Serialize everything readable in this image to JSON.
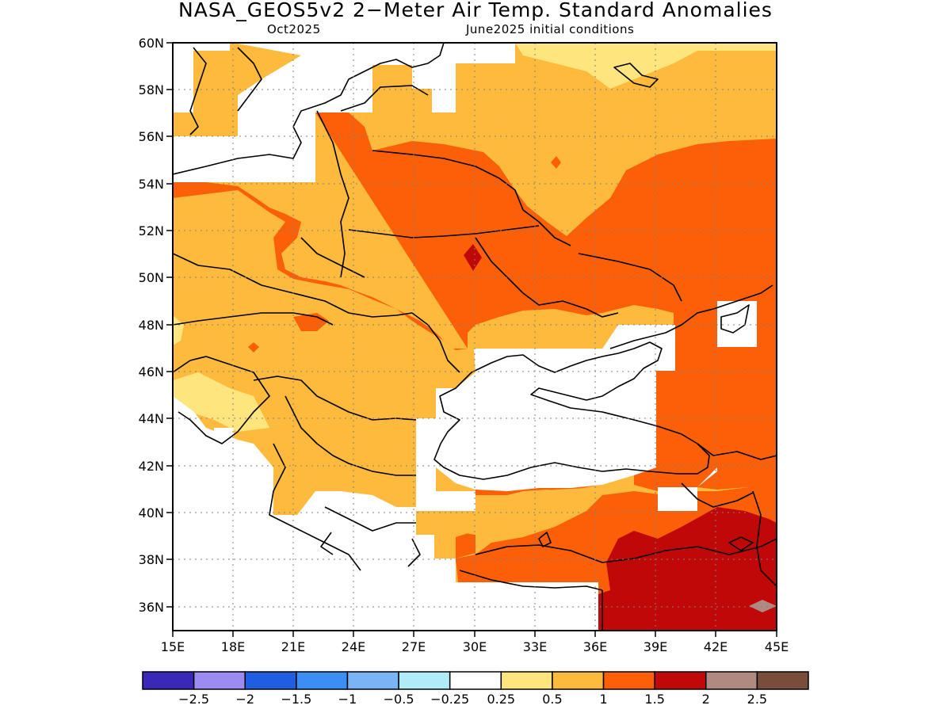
{
  "title": "NASA_GEOS5v2 2−Meter Air Temp. Standard Anomalies",
  "subtitle_left": "Oct2025",
  "subtitle_right": "June2025 initial conditions",
  "lat_ticks": [
    "60N",
    "58N",
    "56N",
    "54N",
    "52N",
    "50N",
    "48N",
    "46N",
    "44N",
    "42N",
    "40N",
    "38N",
    "36N"
  ],
  "lon_ticks": [
    "15E",
    "18E",
    "21E",
    "24E",
    "27E",
    "30E",
    "33E",
    "36E",
    "39E",
    "42E",
    "45E"
  ],
  "colorbar": {
    "colors": [
      "#3a28b8",
      "#9c8cf2",
      "#1f5ee0",
      "#3c8ef4",
      "#78b4f6",
      "#b0ecf8",
      "#ffffff",
      "#fee57e",
      "#fdba3c",
      "#fb6009",
      "#c00808",
      "#b08a80",
      "#7a4c3c"
    ],
    "labels": [
      "−2.5",
      "−2",
      "−1.5",
      "−1",
      "−0.5",
      "−0.25",
      "0.25",
      "0.5",
      "1",
      "1.5",
      "2",
      "2.5"
    ]
  }
}
